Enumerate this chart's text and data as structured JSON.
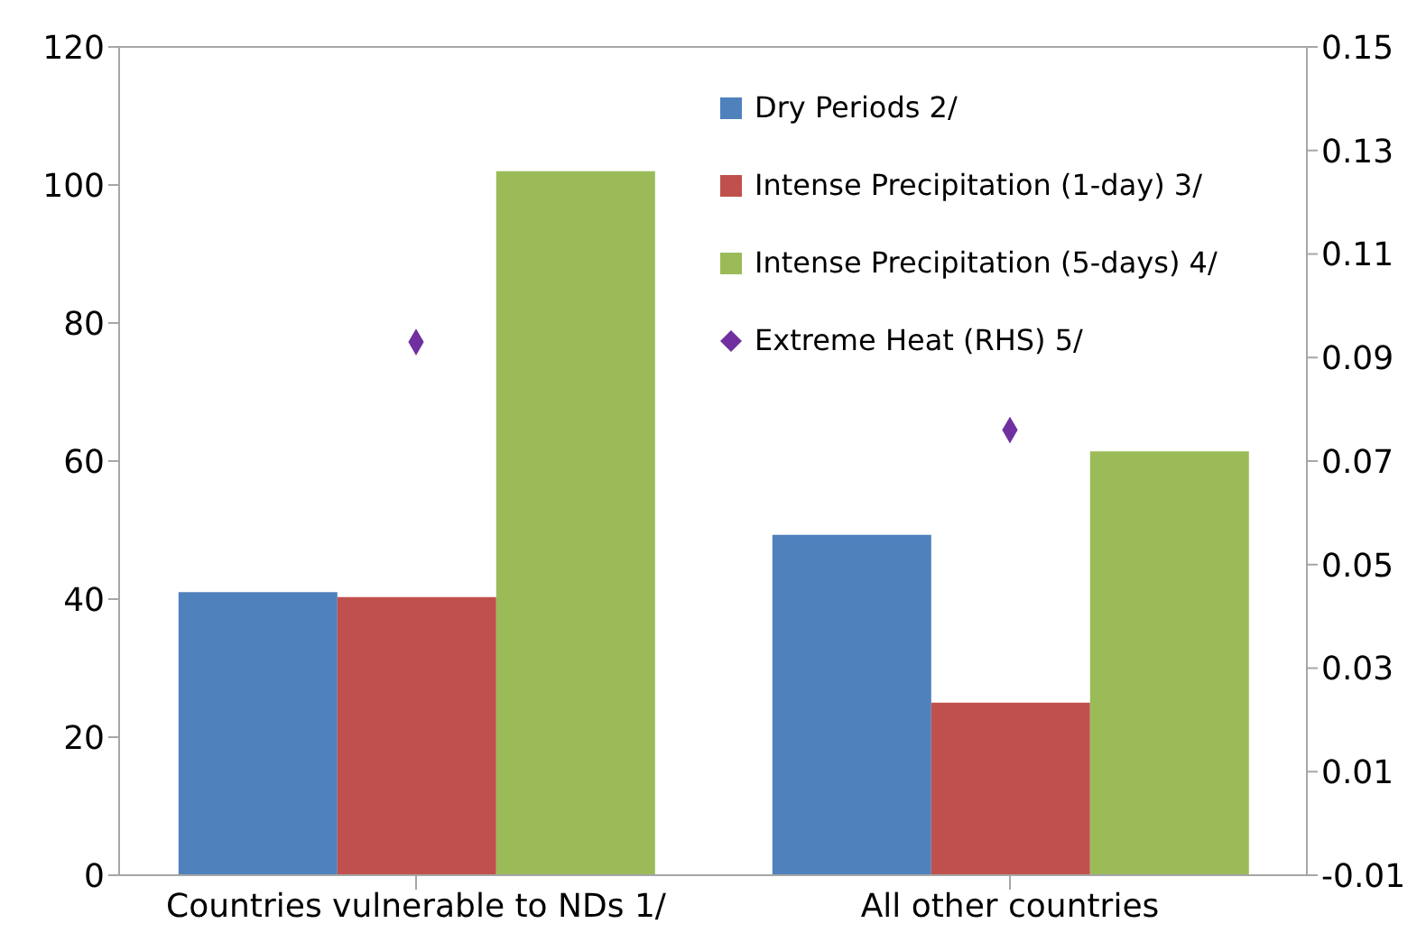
{
  "chart_data": {
    "type": "bar",
    "categories": [
      "Countries vulnerable to NDs 1/",
      "All other countries"
    ],
    "series": [
      {
        "name": "Dry Periods  2/",
        "color": "#4f81bd",
        "values": [
          41,
          49.3
        ]
      },
      {
        "name": "Intense Precipitation (1-day) 3/",
        "color": "#c0504d",
        "values": [
          40.3,
          25
        ]
      },
      {
        "name": "Intense Precipitation (5-days) 4/",
        "color": "#9bbb59",
        "values": [
          102,
          61.4
        ]
      },
      {
        "name": "Extreme Heat (RHS) 5/",
        "type": "scatter",
        "axis": "y2",
        "marker": "diamond",
        "color": "#7030a0",
        "values": [
          0.093,
          0.076
        ]
      }
    ],
    "ylim": [
      0,
      120
    ],
    "yticks": [
      0,
      20,
      40,
      60,
      80,
      100,
      120
    ],
    "y2lim": [
      -0.01,
      0.15
    ],
    "y2ticks": [
      -0.01,
      0.01,
      0.03,
      0.05,
      0.07,
      0.09,
      0.11,
      0.13,
      0.15
    ],
    "legend": "top right",
    "grid": false
  }
}
